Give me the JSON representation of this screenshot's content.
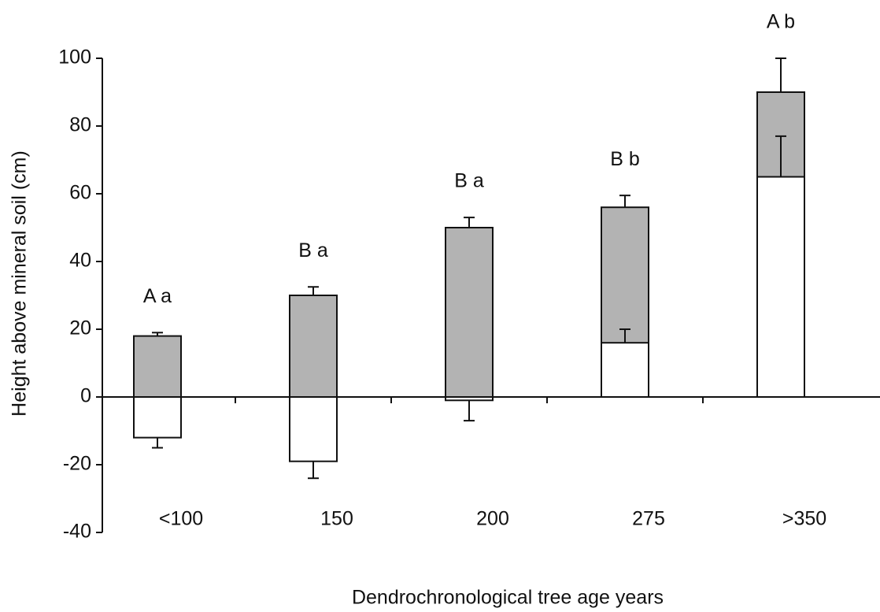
{
  "chart_data": {
    "type": "bar",
    "x_label": "Dendrochronological tree age years",
    "y_label": "Height above mineral soil (cm)",
    "categories": [
      "<100",
      "150",
      "200",
      "275",
      ">350"
    ],
    "annotations": [
      "A a",
      "B a",
      "B a",
      "B b",
      "A b"
    ],
    "series": [
      {
        "color": "#b3b3b3",
        "values": [
          18,
          30,
          50,
          56,
          90
        ],
        "errors": [
          1,
          2.5,
          3,
          3.5,
          10
        ]
      },
      {
        "color": "#ffffff",
        "values": [
          -12,
          -19,
          -1,
          16,
          65
        ],
        "errors": [
          3,
          5,
          6,
          4,
          12
        ]
      }
    ],
    "ylim": [
      -40,
      100
    ],
    "yticks": [
      -40,
      -20,
      0,
      20,
      40,
      60,
      80,
      100
    ],
    "grid": false
  }
}
